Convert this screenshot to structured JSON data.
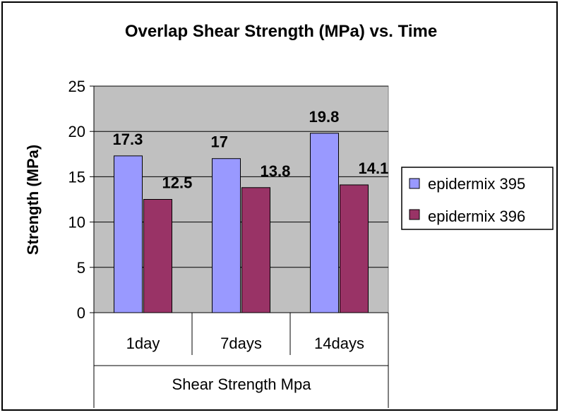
{
  "chart_data": {
    "type": "bar",
    "title": "Overlap Shear Strength (MPa) vs. Time",
    "ylabel": "Strength (MPa)",
    "xlabel": "Shear Strength Mpa",
    "categories": [
      "1day",
      "7days",
      "14days"
    ],
    "series": [
      {
        "name": "epidermix 395",
        "values": [
          17.3,
          17,
          19.8
        ],
        "labels": [
          "17.3",
          "17",
          "19.8"
        ],
        "color": "#9999ff"
      },
      {
        "name": "epidermix 396",
        "values": [
          12.5,
          13.8,
          14.1
        ],
        "labels": [
          "12.5",
          "13.8",
          "14.1"
        ],
        "color": "#993366"
      }
    ],
    "ylim": [
      0,
      25
    ],
    "yticks": [
      "0",
      "5",
      "10",
      "15",
      "20",
      "25"
    ],
    "grid": true,
    "plot_background": "#c0c0c0",
    "legend_position": "right"
  }
}
